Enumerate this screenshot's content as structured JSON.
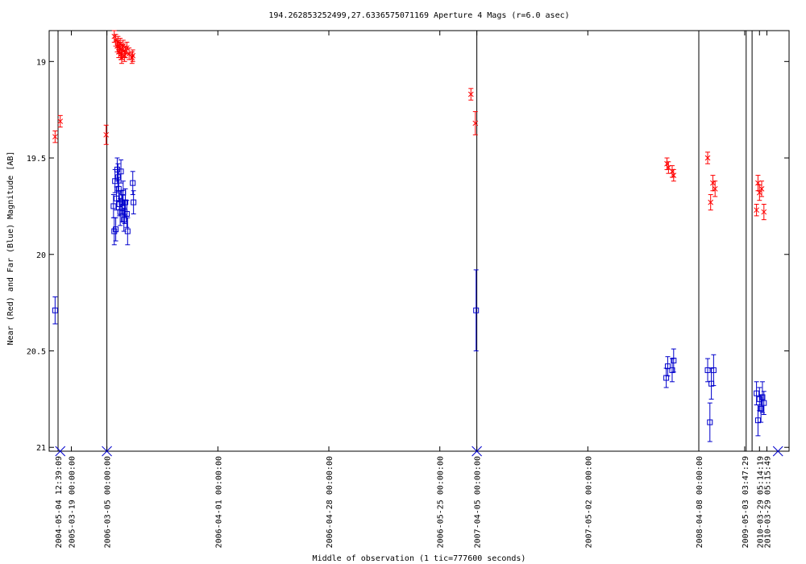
{
  "chart_data": {
    "type": "scatter",
    "title": "194.262853252499,27.6336575071169   Aperture 4 Mags (r=6.0 asec)",
    "xlabel": "Middle of observation (1 tic=777600 seconds)",
    "ylabel": "Near (Red) and Far (Blue) Magnitude [AB]",
    "ylim": [
      21.02,
      18.84
    ],
    "y_reversed": true,
    "y_ticks": [
      "19",
      "19.5",
      "20",
      "20.5",
      "21"
    ],
    "x_range_index": [
      0,
      1000
    ],
    "x_ticks": [
      {
        "label": "2004-05-04 12:39:09",
        "index": 12
      },
      {
        "label": "2005-03-19 00:00:00",
        "index": 30
      },
      {
        "label": "2006-03-05 00:00:00",
        "index": 78
      },
      {
        "label": "2006-04-01 00:00:00",
        "index": 228
      },
      {
        "label": "2006-04-28 00:00:00",
        "index": 378
      },
      {
        "label": "2006-05-25 00:00:00",
        "index": 528
      },
      {
        "label": "2007-04-05 00:00:00",
        "index": 578
      },
      {
        "label": "2007-05-02 00:00:00",
        "index": 728
      },
      {
        "label": "2008-04-08 00:00:00",
        "index": 878
      },
      {
        "label": "2009-05-03 03:47:29",
        "index": 940
      },
      {
        "label": "2010-03-29 05:14:19",
        "index": 960
      },
      {
        "label": "2010-03-29 05:15:49",
        "index": 970
      }
    ],
    "break_lines_index": [
      12,
      78,
      578,
      878,
      942,
      950
    ],
    "blue_x_markers_index": [
      15,
      78,
      578,
      985
    ],
    "colors": {
      "near": "#ff0000",
      "far": "#0000cc",
      "axis": "#000000"
    },
    "series": [
      {
        "name": "Near",
        "marker": "x",
        "color": "#ff0000",
        "points": [
          [
            8,
            19.39,
            0.03
          ],
          [
            15,
            19.31,
            0.03
          ],
          [
            77,
            19.38,
            0.05
          ],
          [
            88,
            18.87,
            0.03
          ],
          [
            90,
            18.89,
            0.03
          ],
          [
            92,
            18.92,
            0.03
          ],
          [
            93,
            18.9,
            0.03
          ],
          [
            94,
            18.95,
            0.03
          ],
          [
            95,
            18.93,
            0.03
          ],
          [
            96,
            18.91,
            0.03
          ],
          [
            97,
            18.96,
            0.03
          ],
          [
            98,
            18.98,
            0.03
          ],
          [
            99,
            18.94,
            0.03
          ],
          [
            100,
            18.92,
            0.03
          ],
          [
            102,
            18.97,
            0.03
          ],
          [
            103,
            18.95,
            0.03
          ],
          [
            105,
            18.93,
            0.03
          ],
          [
            108,
            18.96,
            0.03
          ],
          [
            112,
            18.98,
            0.03
          ],
          [
            113,
            18.97,
            0.03
          ],
          [
            570,
            19.17,
            0.03
          ],
          [
            576,
            19.32,
            0.06
          ],
          [
            835,
            19.53,
            0.03
          ],
          [
            837,
            19.55,
            0.03
          ],
          [
            842,
            19.57,
            0.03
          ],
          [
            844,
            19.59,
            0.03
          ],
          [
            890,
            19.5,
            0.03
          ],
          [
            894,
            19.73,
            0.04
          ],
          [
            897,
            19.63,
            0.04
          ],
          [
            900,
            19.66,
            0.04
          ],
          [
            956,
            19.77,
            0.03
          ],
          [
            958,
            19.63,
            0.04
          ],
          [
            960,
            19.68,
            0.04
          ],
          [
            963,
            19.66,
            0.04
          ],
          [
            966,
            19.78,
            0.04
          ]
        ]
      },
      {
        "name": "Far",
        "marker": "square",
        "color": "#0000cc",
        "points": [
          [
            8,
            20.29,
            0.07
          ],
          [
            87,
            19.75,
            0.06
          ],
          [
            88,
            19.88,
            0.07
          ],
          [
            89,
            19.62,
            0.06
          ],
          [
            90,
            19.87,
            0.06
          ],
          [
            91,
            19.71,
            0.06
          ],
          [
            92,
            19.56,
            0.06
          ],
          [
            93,
            19.6,
            0.07
          ],
          [
            94,
            19.66,
            0.06
          ],
          [
            95,
            19.74,
            0.06
          ],
          [
            96,
            19.78,
            0.07
          ],
          [
            97,
            19.57,
            0.06
          ],
          [
            98,
            19.73,
            0.06
          ],
          [
            99,
            19.76,
            0.07
          ],
          [
            100,
            19.68,
            0.06
          ],
          [
            101,
            19.82,
            0.06
          ],
          [
            102,
            19.78,
            0.06
          ],
          [
            103,
            19.73,
            0.07
          ],
          [
            105,
            19.79,
            0.07
          ],
          [
            106,
            19.88,
            0.07
          ],
          [
            113,
            19.63,
            0.06
          ],
          [
            114,
            19.73,
            0.06
          ],
          [
            577,
            20.29,
            0.21
          ],
          [
            834,
            20.64,
            0.05
          ],
          [
            836,
            20.58,
            0.05
          ],
          [
            842,
            20.6,
            0.06
          ],
          [
            844,
            20.55,
            0.06
          ],
          [
            890,
            20.6,
            0.06
          ],
          [
            893,
            20.87,
            0.1
          ],
          [
            895,
            20.67,
            0.08
          ],
          [
            898,
            20.6,
            0.08
          ],
          [
            956,
            20.72,
            0.06
          ],
          [
            958,
            20.86,
            0.08
          ],
          [
            960,
            20.75,
            0.06
          ],
          [
            962,
            20.8,
            0.07
          ],
          [
            964,
            20.74,
            0.08
          ],
          [
            966,
            20.77,
            0.06
          ]
        ]
      }
    ]
  }
}
